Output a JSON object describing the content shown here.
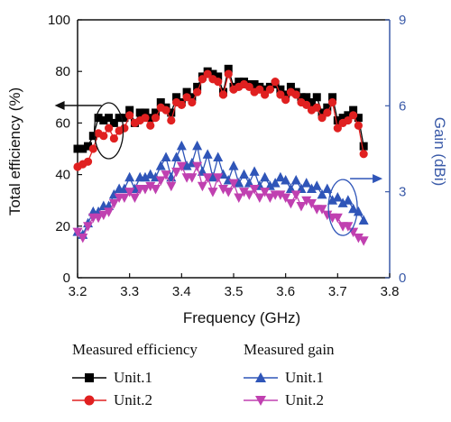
{
  "chart_data": {
    "type": "line",
    "xlabel": "Frequency (GHz)",
    "ylabel": "Total efficiency (%)",
    "y2label": "Gain (dBi)",
    "xlim": [
      3.2,
      3.8
    ],
    "xtickvals": [
      3.2,
      3.3,
      3.4,
      3.5,
      3.6,
      3.7,
      3.8
    ],
    "xticks": [
      "3.2",
      "3.3",
      "3.4",
      "3.5",
      "3.6",
      "3.7",
      "3.8"
    ],
    "ylim": [
      0,
      100
    ],
    "ytickvals": [
      0,
      20,
      40,
      60,
      80,
      100
    ],
    "yticks": [
      "0",
      "20",
      "40",
      "60",
      "80",
      "100"
    ],
    "y2lim": [
      0,
      9
    ],
    "y2tickvals": [
      0,
      3,
      6,
      9
    ],
    "y2ticks": [
      "0",
      "3",
      "6",
      "9"
    ],
    "legend_groups": [
      "Measured efficiency",
      "Measured gain"
    ],
    "series": [
      {
        "name": "Unit.1",
        "group": "Measured efficiency",
        "axis": "left",
        "color": "#000000",
        "marker": "square",
        "x": [
          3.2,
          3.21,
          3.22,
          3.23,
          3.24,
          3.25,
          3.26,
          3.27,
          3.28,
          3.29,
          3.3,
          3.31,
          3.32,
          3.33,
          3.34,
          3.35,
          3.36,
          3.37,
          3.38,
          3.39,
          3.4,
          3.41,
          3.42,
          3.43,
          3.44,
          3.45,
          3.46,
          3.47,
          3.48,
          3.49,
          3.5,
          3.51,
          3.52,
          3.53,
          3.54,
          3.55,
          3.56,
          3.57,
          3.58,
          3.59,
          3.6,
          3.61,
          3.62,
          3.63,
          3.64,
          3.65,
          3.66,
          3.67,
          3.68,
          3.69,
          3.7,
          3.71,
          3.72,
          3.73,
          3.74,
          3.75
        ],
        "y": [
          50,
          50,
          51,
          55,
          62,
          61,
          62,
          60,
          62,
          62,
          65,
          60,
          64,
          64,
          62,
          64,
          68,
          66,
          64,
          70,
          68,
          72,
          70,
          74,
          78,
          80,
          79,
          78,
          72,
          81,
          74,
          76,
          76,
          75,
          75,
          74,
          73,
          74,
          75,
          73,
          71,
          74,
          72,
          70,
          70,
          68,
          70,
          64,
          66,
          70,
          61,
          62,
          63,
          65,
          62,
          51
        ]
      },
      {
        "name": "Unit.2",
        "group": "Measured efficiency",
        "axis": "left",
        "color": "#e02020",
        "marker": "circle",
        "x": [
          3.2,
          3.21,
          3.22,
          3.23,
          3.24,
          3.25,
          3.26,
          3.27,
          3.28,
          3.29,
          3.3,
          3.31,
          3.32,
          3.33,
          3.34,
          3.35,
          3.36,
          3.37,
          3.38,
          3.39,
          3.4,
          3.41,
          3.42,
          3.43,
          3.44,
          3.45,
          3.46,
          3.47,
          3.48,
          3.49,
          3.5,
          3.51,
          3.52,
          3.53,
          3.54,
          3.55,
          3.56,
          3.57,
          3.58,
          3.59,
          3.6,
          3.61,
          3.62,
          3.63,
          3.64,
          3.65,
          3.66,
          3.67,
          3.68,
          3.69,
          3.7,
          3.71,
          3.72,
          3.73,
          3.74,
          3.75
        ],
        "y": [
          43,
          44,
          45,
          50,
          56,
          55,
          58,
          54,
          57,
          58,
          63,
          60,
          61,
          62,
          59,
          62,
          66,
          65,
          61,
          68,
          67,
          70,
          68,
          72,
          77,
          79,
          77,
          76,
          71,
          79,
          73,
          74,
          75,
          74,
          72,
          73,
          71,
          73,
          76,
          71,
          69,
          72,
          71,
          68,
          67,
          65,
          66,
          62,
          64,
          68,
          58,
          60,
          61,
          63,
          59,
          48
        ]
      },
      {
        "name": "Unit.1",
        "group": "Measured gain",
        "axis": "right",
        "color": "#2f55b8",
        "marker": "triangle-up",
        "x": [
          3.2,
          3.21,
          3.22,
          3.23,
          3.24,
          3.25,
          3.26,
          3.27,
          3.28,
          3.29,
          3.3,
          3.31,
          3.32,
          3.33,
          3.34,
          3.35,
          3.36,
          3.37,
          3.38,
          3.39,
          3.4,
          3.41,
          3.42,
          3.43,
          3.44,
          3.45,
          3.46,
          3.47,
          3.48,
          3.49,
          3.5,
          3.51,
          3.52,
          3.53,
          3.54,
          3.55,
          3.56,
          3.57,
          3.58,
          3.59,
          3.6,
          3.61,
          3.62,
          3.63,
          3.64,
          3.65,
          3.66,
          3.67,
          3.68,
          3.69,
          3.7,
          3.71,
          3.72,
          3.73,
          3.74,
          3.75
        ],
        "y": [
          1.6,
          1.5,
          1.9,
          2.3,
          2.3,
          2.5,
          2.5,
          2.9,
          3.1,
          3.1,
          3.5,
          3.1,
          3.5,
          3.5,
          3.6,
          3.5,
          3.9,
          4.2,
          3.5,
          4.2,
          4.6,
          3.9,
          4.0,
          4.6,
          3.7,
          4.3,
          3.5,
          4.2,
          3.6,
          3.4,
          3.9,
          3.3,
          3.6,
          3.3,
          3.7,
          3.2,
          3.5,
          3.2,
          3.3,
          3.5,
          3.4,
          3.1,
          3.4,
          3.1,
          3.3,
          3.1,
          3.2,
          2.9,
          3.1,
          2.7,
          2.8,
          2.6,
          2.7,
          2.4,
          2.3,
          2.0
        ]
      },
      {
        "name": "Unit.2",
        "group": "Measured gain",
        "axis": "right",
        "color": "#c040b0",
        "marker": "triangle-down",
        "x": [
          3.2,
          3.21,
          3.22,
          3.23,
          3.24,
          3.25,
          3.26,
          3.27,
          3.28,
          3.29,
          3.3,
          3.31,
          3.32,
          3.33,
          3.34,
          3.35,
          3.36,
          3.37,
          3.38,
          3.39,
          3.4,
          3.41,
          3.42,
          3.43,
          3.44,
          3.45,
          3.46,
          3.47,
          3.48,
          3.49,
          3.5,
          3.51,
          3.52,
          3.53,
          3.54,
          3.55,
          3.56,
          3.57,
          3.58,
          3.59,
          3.6,
          3.61,
          3.62,
          3.63,
          3.64,
          3.65,
          3.66,
          3.67,
          3.68,
          3.69,
          3.7,
          3.71,
          3.72,
          3.73,
          3.74,
          3.75
        ],
        "y": [
          1.6,
          1.4,
          1.8,
          2.1,
          2.1,
          2.2,
          2.3,
          2.6,
          2.8,
          2.8,
          3.0,
          2.8,
          3.1,
          3.1,
          3.2,
          3.1,
          3.4,
          3.6,
          3.2,
          3.7,
          3.9,
          3.5,
          3.5,
          3.9,
          3.2,
          3.5,
          3.0,
          3.5,
          3.1,
          3.0,
          3.3,
          2.8,
          3.0,
          2.9,
          3.1,
          2.8,
          3.0,
          2.8,
          2.9,
          2.9,
          2.8,
          2.6,
          2.9,
          2.5,
          2.7,
          2.6,
          2.4,
          2.4,
          2.2,
          2.1,
          2.1,
          1.8,
          1.8,
          1.6,
          1.4,
          1.3
        ]
      }
    ],
    "annotations": [
      {
        "type": "ellipse-arrow",
        "axis": "left",
        "ellipse_center": [
          3.26,
          57
        ],
        "arrow_direction": "left"
      },
      {
        "type": "ellipse-arrow",
        "axis": "right",
        "ellipse_center": [
          3.71,
          2.45
        ],
        "arrow_direction": "right"
      }
    ]
  }
}
